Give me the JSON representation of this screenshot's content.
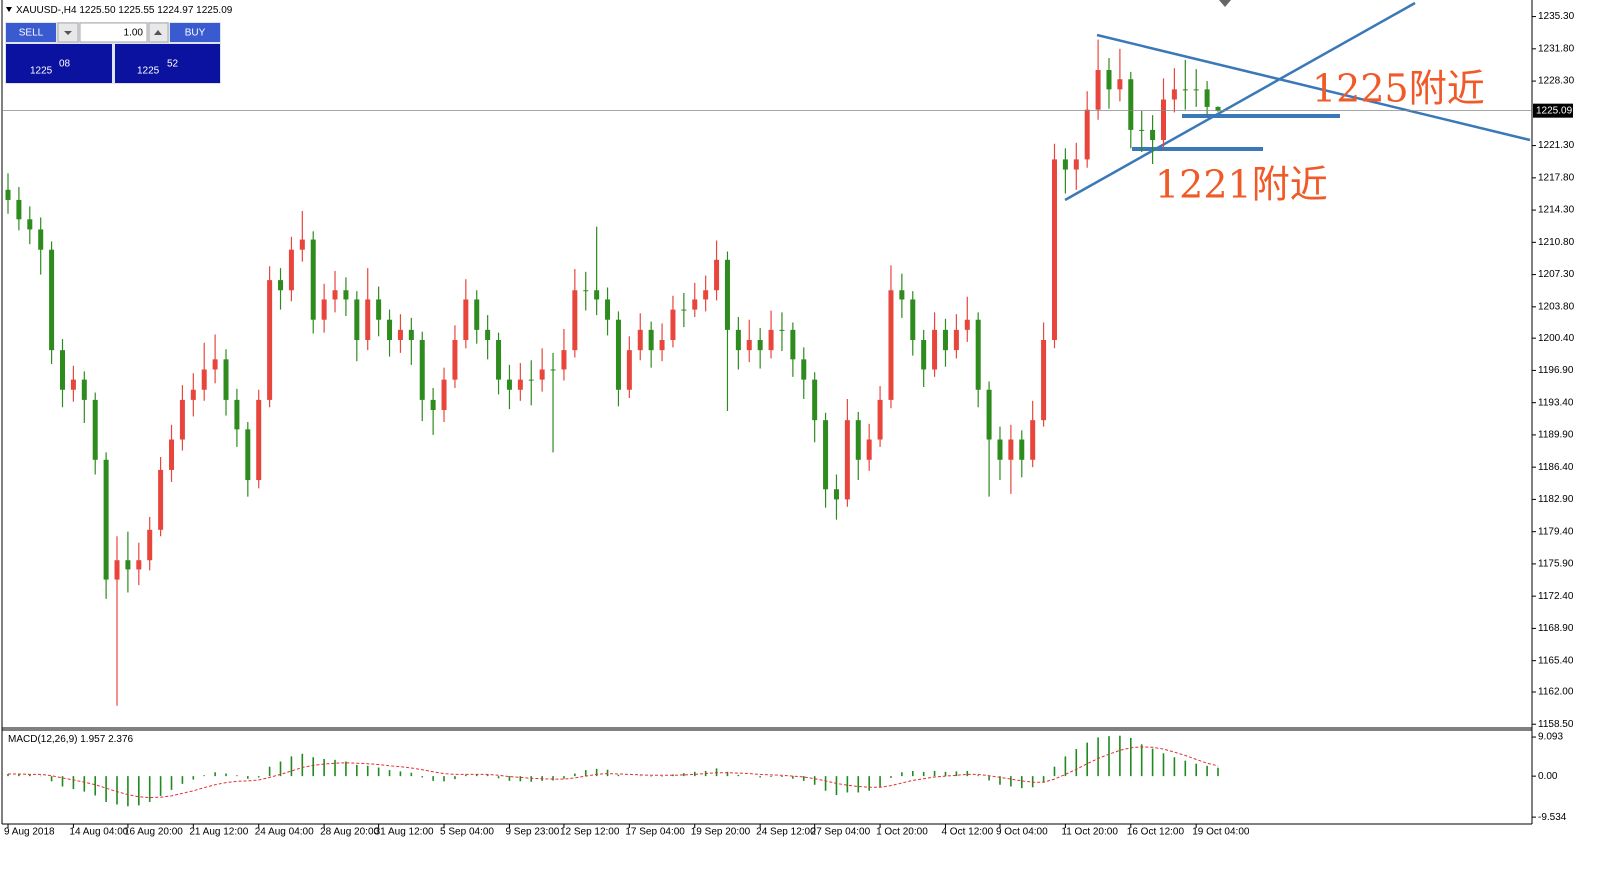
{
  "trade_panel": {
    "sell": "SELL",
    "buy": "BUY",
    "lot": "1.00",
    "bid": [
      "1225",
      "08"
    ],
    "ask": [
      "1225",
      "52"
    ]
  },
  "chart_data": {
    "type": "candlestick",
    "header": {
      "symbol": "XAUUSD-,H4",
      "ohlc_labels": [
        "1225.50",
        "1225.55",
        "1224.97",
        "1225.09"
      ]
    },
    "categories": [
      "9 Aug 2018",
      null,
      null,
      null,
      null,
      null,
      "14 Aug 04:00",
      null,
      null,
      null,
      null,
      "16 Aug 20:00",
      null,
      null,
      null,
      null,
      null,
      "21 Aug 12:00",
      null,
      null,
      null,
      null,
      null,
      "24 Aug 04:00",
      null,
      null,
      null,
      null,
      null,
      "28 Aug 20:00",
      null,
      null,
      null,
      null,
      "31 Aug 12:00",
      null,
      null,
      null,
      null,
      null,
      "5 Sep 04:00",
      null,
      null,
      null,
      null,
      null,
      "9 Sep 23:00",
      null,
      null,
      null,
      null,
      "12 Sep 12:00",
      null,
      null,
      null,
      null,
      null,
      "17 Sep 04:00",
      null,
      null,
      null,
      null,
      null,
      "19 Sep 20:00",
      null,
      null,
      null,
      null,
      null,
      "24 Sep 12:00",
      null,
      null,
      null,
      null,
      "27 Sep 04:00",
      null,
      null,
      null,
      null,
      null,
      "1 Oct 20:00",
      null,
      null,
      null,
      null,
      null,
      "4 Oct 12:00",
      null,
      null,
      null,
      null,
      "9 Oct 04:00",
      null,
      null,
      null,
      null,
      null,
      "11 Oct 20:00",
      null,
      null,
      null,
      null,
      null,
      "16 Oct 12:00",
      null,
      null,
      null,
      null,
      null,
      "19 Oct 04:00",
      null,
      null
    ],
    "open": [
      1216.5,
      1215.4,
      1213.3,
      1212.2,
      1210.0,
      1199.1,
      1194.8,
      1195.9,
      1193.7,
      1187.2,
      1174.2,
      1176.3,
      1175.3,
      1176.3,
      1179.6,
      1186.1,
      1189.4,
      1193.7,
      1194.8,
      1197.0,
      1198.1,
      1193.7,
      1190.5,
      1185.0,
      1193.7,
      1206.7,
      1205.6,
      1210.0,
      1211.1,
      1202.4,
      1204.6,
      1205.6,
      1204.6,
      1200.2,
      1204.6,
      1202.4,
      1200.2,
      1201.3,
      1200.2,
      1193.7,
      1192.6,
      1195.9,
      1200.2,
      1204.6,
      1201.3,
      1200.2,
      1195.9,
      1194.8,
      1195.9,
      1195.9,
      1197.0,
      1197.0,
      1199.1,
      1205.6,
      1205.6,
      1204.6,
      1202.4,
      1194.8,
      1199.1,
      1201.3,
      1199.1,
      1200.2,
      1203.5,
      1203.5,
      1204.6,
      1205.6,
      1208.9,
      1201.3,
      1199.1,
      1200.2,
      1199.1,
      1201.3,
      1201.3,
      1198.1,
      1195.9,
      1191.5,
      1184.0,
      1182.9,
      1191.5,
      1187.2,
      1189.4,
      1193.7,
      1205.6,
      1204.6,
      1200.2,
      1197.0,
      1201.3,
      1199.1,
      1201.3,
      1202.4,
      1194.8,
      1189.4,
      1187.2,
      1189.4,
      1187.2,
      1191.5,
      1200.2,
      1219.8,
      1218.7,
      1219.8,
      1225.2,
      1229.5,
      1227.4,
      1228.5,
      1223.0,
      1223.0,
      1221.9,
      1226.3,
      1227.4,
      1227.4,
      1227.4,
      1225.5
    ],
    "high": [
      1218.3,
      1216.8,
      1214.7,
      1213.5,
      1210.9,
      1200.3,
      1197.4,
      1196.8,
      1194.5,
      1188.0,
      1178.9,
      1179.4,
      1178.2,
      1181.0,
      1187.5,
      1191.0,
      1195.3,
      1196.6,
      1199.9,
      1200.8,
      1199.2,
      1194.9,
      1191.3,
      1194.8,
      1208.2,
      1208.0,
      1211.4,
      1214.2,
      1212.0,
      1206.3,
      1207.7,
      1207.0,
      1205.5,
      1208.0,
      1206.0,
      1203.5,
      1203.0,
      1202.6,
      1201.1,
      1195.0,
      1197.2,
      1201.8,
      1206.8,
      1205.6,
      1202.9,
      1201.0,
      1197.5,
      1197.7,
      1198.0,
      1199.3,
      1198.8,
      1201.4,
      1207.9,
      1207.6,
      1212.5,
      1205.9,
      1203.3,
      1200.6,
      1203.1,
      1202.2,
      1202.0,
      1205.0,
      1205.3,
      1206.4,
      1207.2,
      1211.0,
      1209.8,
      1202.7,
      1202.4,
      1201.5,
      1203.4,
      1203.2,
      1202.1,
      1199.4,
      1196.7,
      1192.3,
      1185.6,
      1193.8,
      1192.4,
      1191.1,
      1195.2,
      1208.3,
      1207.4,
      1205.5,
      1201.3,
      1203.2,
      1202.5,
      1203.0,
      1204.9,
      1203.2,
      1195.7,
      1190.8,
      1191.0,
      1190.4,
      1193.6,
      1202.1,
      1221.5,
      1221.0,
      1221.6,
      1227.2,
      1232.8,
      1230.8,
      1231.8,
      1229.3,
      1225.1,
      1224.6,
      1228.6,
      1229.7,
      1230.6,
      1229.6,
      1228.3,
      1225.55
    ],
    "low": [
      1213.9,
      1212.1,
      1210.6,
      1207.3,
      1197.6,
      1192.9,
      1193.5,
      1191.2,
      1185.6,
      1172.1,
      1160.5,
      1172.8,
      1173.6,
      1175.2,
      1178.9,
      1184.8,
      1188.2,
      1191.9,
      1193.6,
      1195.5,
      1192.0,
      1188.6,
      1183.2,
      1184.1,
      1192.9,
      1203.5,
      1204.4,
      1208.7,
      1200.9,
      1201.0,
      1203.2,
      1202.8,
      1197.9,
      1199.1,
      1200.6,
      1198.4,
      1198.8,
      1197.5,
      1191.4,
      1189.9,
      1191.3,
      1195.0,
      1199.3,
      1199.8,
      1198.1,
      1194.3,
      1192.7,
      1193.6,
      1193.1,
      1194.6,
      1188.0,
      1195.8,
      1198.3,
      1203.4,
      1202.9,
      1200.7,
      1193.0,
      1193.9,
      1198.0,
      1197.2,
      1197.9,
      1199.4,
      1201.6,
      1202.7,
      1203.3,
      1204.5,
      1192.5,
      1197.0,
      1197.8,
      1197.1,
      1198.2,
      1199.0,
      1196.2,
      1193.8,
      1189.1,
      1182.0,
      1180.7,
      1182.1,
      1185.0,
      1186.0,
      1188.6,
      1192.8,
      1202.6,
      1198.5,
      1195.1,
      1196.2,
      1197.3,
      1198.2,
      1200.0,
      1192.9,
      1183.2,
      1185.0,
      1183.5,
      1185.3,
      1186.4,
      1190.8,
      1199.3,
      1216.1,
      1216.5,
      1218.9,
      1224.1,
      1225.3,
      1226.1,
      1221.0,
      1220.6,
      1219.3,
      1221.0,
      1224.9,
      1225.2,
      1225.5,
      1224.6,
      1224.97
    ],
    "close": [
      1215.4,
      1213.3,
      1212.2,
      1210.0,
      1199.1,
      1194.8,
      1195.9,
      1193.7,
      1187.2,
      1174.2,
      1176.3,
      1175.3,
      1176.3,
      1179.6,
      1186.1,
      1189.4,
      1193.7,
      1194.8,
      1197.0,
      1198.1,
      1193.7,
      1190.5,
      1185.0,
      1193.7,
      1206.7,
      1205.6,
      1210.0,
      1211.1,
      1202.4,
      1204.6,
      1205.6,
      1204.6,
      1200.2,
      1204.6,
      1202.4,
      1200.2,
      1201.3,
      1200.2,
      1193.7,
      1192.6,
      1195.9,
      1200.2,
      1204.6,
      1201.3,
      1200.2,
      1195.9,
      1194.8,
      1195.9,
      1195.9,
      1197.0,
      1197.0,
      1199.1,
      1205.6,
      1205.6,
      1204.6,
      1202.4,
      1194.8,
      1199.1,
      1201.3,
      1199.1,
      1200.2,
      1203.5,
      1203.5,
      1204.6,
      1205.6,
      1208.9,
      1201.3,
      1199.1,
      1200.2,
      1199.1,
      1201.3,
      1201.3,
      1198.1,
      1195.9,
      1191.5,
      1184.0,
      1182.9,
      1191.5,
      1187.2,
      1189.4,
      1193.7,
      1205.6,
      1204.6,
      1200.2,
      1197.0,
      1201.3,
      1199.1,
      1201.3,
      1202.4,
      1194.8,
      1189.4,
      1187.2,
      1189.4,
      1187.2,
      1191.5,
      1200.2,
      1219.8,
      1218.7,
      1219.8,
      1225.2,
      1229.5,
      1227.4,
      1228.5,
      1223.0,
      1223.0,
      1221.9,
      1226.3,
      1227.4,
      1227.4,
      1227.4,
      1225.5,
      1225.09
    ],
    "up_color": "#e8463c",
    "down_color": "#2e8b1e",
    "ylim": [
      1158.2,
      1237.1
    ],
    "yticks": [
      {
        "value": 1235.3,
        "label": "1235.30"
      },
      {
        "value": 1231.8,
        "label": "1231.80"
      },
      {
        "value": 1228.3,
        "label": "1228.30"
      },
      {
        "value": 1221.3,
        "label": "1221.30"
      },
      {
        "value": 1217.8,
        "label": "1217.80"
      },
      {
        "value": 1214.3,
        "label": "1214.30"
      },
      {
        "value": 1210.8,
        "label": "1210.80"
      },
      {
        "value": 1207.3,
        "label": "1207.30"
      },
      {
        "value": 1203.8,
        "label": "1203.80"
      },
      {
        "value": 1200.4,
        "label": "1200.40"
      },
      {
        "value": 1196.9,
        "label": "1196.90"
      },
      {
        "value": 1193.4,
        "label": "1193.40"
      },
      {
        "value": 1189.9,
        "label": "1189.90"
      },
      {
        "value": 1186.4,
        "label": "1186.40"
      },
      {
        "value": 1182.9,
        "label": "1182.90"
      },
      {
        "value": 1179.4,
        "label": "1179.40"
      },
      {
        "value": 1175.9,
        "label": "1175.90"
      },
      {
        "value": 1172.4,
        "label": "1172.40"
      },
      {
        "value": 1168.9,
        "label": "1168.90"
      },
      {
        "value": 1165.4,
        "label": "1165.40"
      },
      {
        "value": 1162,
        "label": "1162.00"
      },
      {
        "value": 1158.5,
        "label": "1158.50"
      }
    ],
    "current_price": {
      "value": 1225.09,
      "label": "1225.09"
    },
    "annotations": [
      "1225附近",
      "1221附近"
    ],
    "macd": {
      "title": "MACD(12,26,9)",
      "main_color": "#1f8a1f",
      "signal_color": "#e03030",
      "ylim": [
        -10.9,
        10.5
      ],
      "yticks": [
        9.093,
        {
          "value": 0,
          "label": "0.00"
        },
        -9.534
      ],
      "main": [
        0.5,
        0.4,
        0.3,
        0.1,
        -1.2,
        -2.4,
        -3.0,
        -3.6,
        -4.5,
        -6.0,
        -6.6,
        -7.0,
        -6.8,
        -6.0,
        -4.6,
        -3.2,
        -1.8,
        -0.8,
        0.2,
        0.9,
        0.6,
        0.2,
        -0.6,
        -0.3,
        2.2,
        3.4,
        4.6,
        5.2,
        4.4,
        4.0,
        3.8,
        3.4,
        2.6,
        2.4,
        2.0,
        1.4,
        1.1,
        0.8,
        -0.3,
        -1.1,
        -1.2,
        -0.7,
        0.3,
        0.4,
        0.3,
        -0.5,
        -1.1,
        -1.2,
        -1.3,
        -1.1,
        -1.0,
        -0.6,
        0.6,
        1.4,
        1.7,
        1.5,
        0.3,
        0.0,
        0.1,
        -0.1,
        -0.1,
        0.4,
        0.7,
        1.0,
        1.2,
        1.8,
        1.0,
        0.3,
        0.0,
        -0.3,
        -0.2,
        -0.2,
        -0.6,
        -1.1,
        -2.0,
        -3.4,
        -4.4,
        -3.8,
        -3.8,
        -3.4,
        -2.6,
        -0.4,
        0.9,
        1.2,
        1.0,
        1.2,
        1.0,
        1.1,
        1.2,
        0.2,
        -1.0,
        -2.0,
        -2.4,
        -2.8,
        -2.6,
        -1.4,
        2.2,
        4.6,
        6.3,
        7.8,
        9.0,
        9.3,
        9.4,
        8.9,
        7.4,
        6.4,
        5.3,
        4.4,
        3.6,
        2.9,
        2.4,
        1.957
      ],
      "signal": [
        0.5,
        0.5,
        0.4,
        0.4,
        0.1,
        -0.4,
        -0.9,
        -1.4,
        -2.0,
        -2.8,
        -3.6,
        -4.3,
        -4.8,
        -5.0,
        -4.9,
        -4.6,
        -4.0,
        -3.4,
        -2.7,
        -2.0,
        -1.5,
        -1.2,
        -1.1,
        -0.9,
        -0.3,
        0.4,
        1.2,
        2.0,
        2.5,
        2.8,
        3.0,
        3.1,
        3.0,
        2.9,
        2.7,
        2.4,
        2.2,
        1.9,
        1.5,
        1.0,
        0.6,
        0.4,
        0.4,
        0.4,
        0.4,
        0.2,
        -0.1,
        -0.3,
        -0.5,
        -0.6,
        -0.7,
        -0.7,
        -0.4,
        0.0,
        0.4,
        0.6,
        0.5,
        0.4,
        0.3,
        0.2,
        0.2,
        0.2,
        0.3,
        0.4,
        0.6,
        0.8,
        0.8,
        0.7,
        0.6,
        0.4,
        0.3,
        0.2,
        0.0,
        -0.2,
        -0.6,
        -1.1,
        -1.7,
        -2.1,
        -2.4,
        -2.6,
        -2.6,
        -2.2,
        -1.6,
        -1.0,
        -0.6,
        -0.2,
        0.0,
        0.2,
        0.4,
        0.4,
        0.1,
        -0.3,
        -0.7,
        -1.1,
        -1.4,
        -1.4,
        -0.7,
        0.4,
        1.6,
        2.9,
        4.1,
        5.1,
        6.0,
        6.6,
        6.8,
        6.7,
        6.3,
        5.6,
        4.8,
        3.9,
        3.0,
        2.376
      ]
    }
  }
}
